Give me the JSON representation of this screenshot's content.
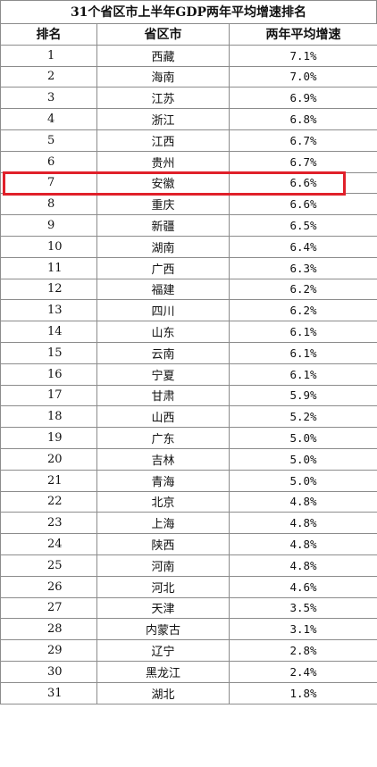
{
  "title": "31个省区市上半年GDP两年平均增速排名",
  "columns": [
    "排名",
    "省区市",
    "两年平均增速"
  ],
  "highlight_rank": 7,
  "accent_color": "#e0202a",
  "rows": [
    {
      "rank": "1",
      "province": "西藏",
      "rate": "7.1%"
    },
    {
      "rank": "2",
      "province": "海南",
      "rate": "7.0%"
    },
    {
      "rank": "3",
      "province": "江苏",
      "rate": "6.9%"
    },
    {
      "rank": "4",
      "province": "浙江",
      "rate": "6.8%"
    },
    {
      "rank": "5",
      "province": "江西",
      "rate": "6.7%"
    },
    {
      "rank": "6",
      "province": "贵州",
      "rate": "6.7%"
    },
    {
      "rank": "7",
      "province": "安徽",
      "rate": "6.6%"
    },
    {
      "rank": "8",
      "province": "重庆",
      "rate": "6.6%"
    },
    {
      "rank": "9",
      "province": "新疆",
      "rate": "6.5%"
    },
    {
      "rank": "10",
      "province": "湖南",
      "rate": "6.4%"
    },
    {
      "rank": "11",
      "province": "广西",
      "rate": "6.3%"
    },
    {
      "rank": "12",
      "province": "福建",
      "rate": "6.2%"
    },
    {
      "rank": "13",
      "province": "四川",
      "rate": "6.2%"
    },
    {
      "rank": "14",
      "province": "山东",
      "rate": "6.1%"
    },
    {
      "rank": "15",
      "province": "云南",
      "rate": "6.1%"
    },
    {
      "rank": "16",
      "province": "宁夏",
      "rate": "6.1%"
    },
    {
      "rank": "17",
      "province": "甘肃",
      "rate": "5.9%"
    },
    {
      "rank": "18",
      "province": "山西",
      "rate": "5.2%"
    },
    {
      "rank": "19",
      "province": "广东",
      "rate": "5.0%"
    },
    {
      "rank": "20",
      "province": "吉林",
      "rate": "5.0%"
    },
    {
      "rank": "21",
      "province": "青海",
      "rate": "5.0%"
    },
    {
      "rank": "22",
      "province": "北京",
      "rate": "4.8%"
    },
    {
      "rank": "23",
      "province": "上海",
      "rate": "4.8%"
    },
    {
      "rank": "24",
      "province": "陕西",
      "rate": "4.8%"
    },
    {
      "rank": "25",
      "province": "河南",
      "rate": "4.8%"
    },
    {
      "rank": "26",
      "province": "河北",
      "rate": "4.6%"
    },
    {
      "rank": "27",
      "province": "天津",
      "rate": "3.5%"
    },
    {
      "rank": "28",
      "province": "内蒙古",
      "rate": "3.1%"
    },
    {
      "rank": "29",
      "province": "辽宁",
      "rate": "2.8%"
    },
    {
      "rank": "30",
      "province": "黑龙江",
      "rate": "2.4%"
    },
    {
      "rank": "31",
      "province": "湖北",
      "rate": "1.8%"
    }
  ]
}
